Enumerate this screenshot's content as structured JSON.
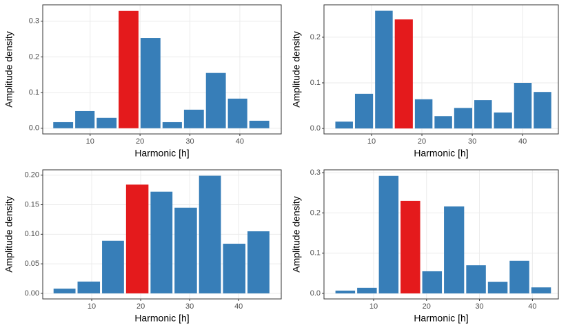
{
  "chart_data": [
    {
      "type": "histogram",
      "x_label": "Harmonic [h]",
      "y_label": "Amplitude density",
      "bins": [
        2.4,
        6.8,
        11.1,
        15.5,
        19.9,
        24.3,
        28.6,
        33,
        37.4,
        41.7,
        46.1
      ],
      "values": [
        0.017,
        0.048,
        0.029,
        0.329,
        0.253,
        0.017,
        0.052,
        0.155,
        0.083,
        0.021
      ],
      "colors": [
        "#377eb8",
        "#377eb8",
        "#377eb8",
        "#e41a1c",
        "#377eb8",
        "#377eb8",
        "#377eb8",
        "#377eb8",
        "#377eb8",
        "#377eb8"
      ],
      "xlim": [
        0.5,
        48.3
      ],
      "ylim": [
        -0.016,
        0.346
      ],
      "xticks": [
        10,
        20,
        30,
        40
      ],
      "yticks": [
        {
          "value": 0,
          "label": "0.0"
        },
        0.1,
        0.2,
        0.3
      ],
      "grid": true
    },
    {
      "type": "histogram",
      "x_label": "Harmonic [h]",
      "y_label": "Amplitude density",
      "bins": [
        2.6,
        6.5,
        10.5,
        14.4,
        18.4,
        22.3,
        26.2,
        30.2,
        34.1,
        38.1,
        42,
        45.9
      ],
      "values": [
        0.015,
        0.076,
        0.258,
        0.239,
        0.064,
        0.027,
        0.045,
        0.062,
        0.035,
        0.1,
        0.08
      ],
      "colors": [
        "#377eb8",
        "#377eb8",
        "#377eb8",
        "#e41a1c",
        "#377eb8",
        "#377eb8",
        "#377eb8",
        "#377eb8",
        "#377eb8",
        "#377eb8",
        "#377eb8"
      ],
      "xlim": [
        0.55,
        47.1
      ],
      "ylim": [
        -0.012,
        0.271
      ],
      "xticks": [
        10,
        20,
        30,
        40
      ],
      "yticks": [
        {
          "value": 0,
          "label": "0.0"
        },
        0.1,
        0.2
      ],
      "grid": true
    },
    {
      "type": "histogram",
      "x_label": "Harmonic [h]",
      "y_label": "Amplitude density",
      "bins": [
        2,
        6.9,
        11.9,
        16.8,
        21.8,
        26.7,
        31.7,
        36.6,
        41.6,
        46.5
      ],
      "values": [
        0.008,
        0.02,
        0.089,
        0.184,
        0.172,
        0.145,
        0.199,
        0.084,
        0.105
      ],
      "colors": [
        "#377eb8",
        "#377eb8",
        "#377eb8",
        "#e41a1c",
        "#377eb8",
        "#377eb8",
        "#377eb8",
        "#377eb8",
        "#377eb8"
      ],
      "xlim": [
        0,
        48.7
      ],
      "ylim": [
        -0.0094,
        0.209
      ],
      "xticks": [
        10,
        20,
        30,
        40
      ],
      "yticks": [
        {
          "value": 0,
          "label": "0.00"
        },
        0.05,
        {
          "value": 0.1,
          "label": "0.10"
        },
        0.15,
        {
          "value": 0.2,
          "label": "0.20"
        }
      ],
      "grid": true
    },
    {
      "type": "histogram",
      "x_label": "Harmonic [h]",
      "y_label": "Amplitude density",
      "bins": [
        2.6,
        6.7,
        10.8,
        14.9,
        19,
        23.1,
        27.3,
        31.4,
        35.5,
        39.6,
        43.7
      ],
      "values": [
        0.007,
        0.014,
        0.292,
        0.23,
        0.055,
        0.216,
        0.07,
        0.029,
        0.081,
        0.015
      ],
      "colors": [
        "#377eb8",
        "#377eb8",
        "#377eb8",
        "#e41a1c",
        "#377eb8",
        "#377eb8",
        "#377eb8",
        "#377eb8",
        "#377eb8",
        "#377eb8"
      ],
      "xlim": [
        0.63,
        44.9
      ],
      "ylim": [
        -0.0137,
        0.307
      ],
      "xticks": [
        10,
        20,
        30,
        40
      ],
      "yticks": [
        {
          "value": 0,
          "label": "0.0"
        },
        0.1,
        0.2,
        0.3
      ],
      "grid": true
    }
  ]
}
